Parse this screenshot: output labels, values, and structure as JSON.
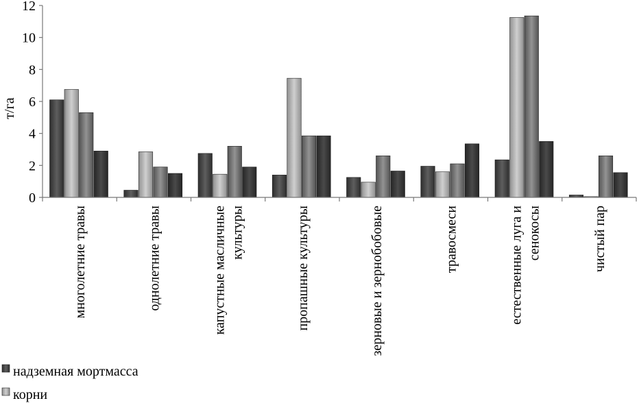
{
  "chart_data": {
    "type": "bar",
    "title": "",
    "xlabel": "",
    "ylabel": "т/га",
    "ylim": [
      0,
      12
    ],
    "yticks": [
      "0",
      "2",
      "4",
      "6",
      "8",
      "10",
      "12"
    ],
    "grid": false,
    "legend_position": "bottom-left",
    "categories": [
      [
        "многолетние травы"
      ],
      [
        "однолетние травы"
      ],
      [
        "капустные масличные",
        "культуры"
      ],
      [
        "пропашные культуры"
      ],
      [
        "зерновые и зернобобовые"
      ],
      [
        "травосмеси"
      ],
      [
        "естественные луга и",
        "сенокосы"
      ],
      [
        "чистый пар"
      ]
    ],
    "series": [
      {
        "name": "надземная мортмасса",
        "color": "#4a4a4a",
        "values": [
          6.1,
          0.45,
          2.75,
          1.4,
          1.25,
          1.95,
          2.35,
          0.15
        ]
      },
      {
        "name": "корни",
        "color": "#b4b4b4",
        "values": [
          6.75,
          2.85,
          1.45,
          7.45,
          0.95,
          1.6,
          11.25,
          0.05
        ]
      },
      {
        "name": "",
        "color": "#7a7a7a",
        "values": [
          5.3,
          1.9,
          3.2,
          3.85,
          2.6,
          2.1,
          11.35,
          2.6
        ]
      },
      {
        "name": "",
        "color": "#3a3a3a",
        "values": [
          2.9,
          1.5,
          1.9,
          3.85,
          1.65,
          3.35,
          3.5,
          1.55
        ]
      }
    ]
  }
}
